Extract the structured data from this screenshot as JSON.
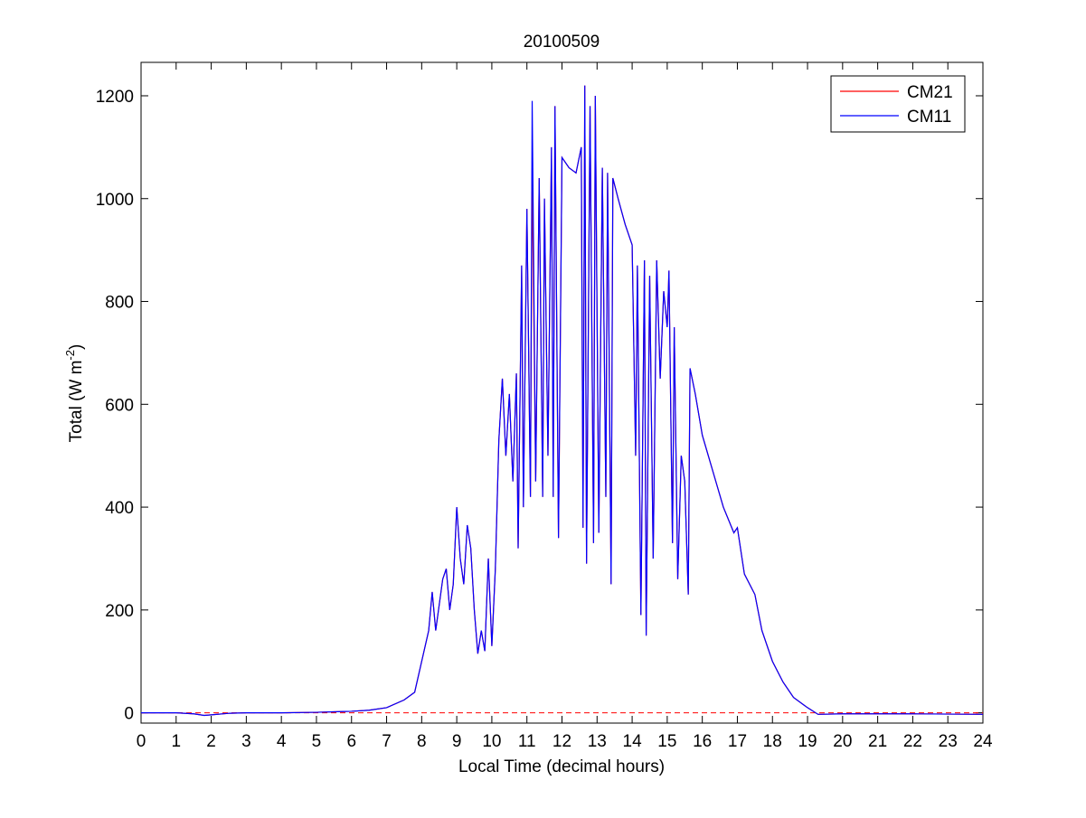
{
  "chart_data": {
    "type": "line",
    "title": "20100509",
    "xlabel": "Local Time (decimal hours)",
    "ylabel": [
      "Total (W m",
      "-2",
      ")"
    ],
    "x": [
      0,
      1,
      1.5,
      1.8,
      2,
      2.5,
      3,
      4,
      5,
      5.5,
      6,
      6.5,
      7,
      7.5,
      7.8,
      8,
      8.2,
      8.3,
      8.4,
      8.6,
      8.7,
      8.8,
      8.9,
      9.0,
      9.1,
      9.2,
      9.3,
      9.4,
      9.5,
      9.6,
      9.7,
      9.8,
      9.9,
      10.0,
      10.1,
      10.2,
      10.3,
      10.4,
      10.5,
      10.6,
      10.7,
      10.75,
      10.85,
      10.9,
      11.0,
      11.1,
      11.15,
      11.25,
      11.35,
      11.45,
      11.5,
      11.6,
      11.7,
      11.75,
      11.8,
      11.9,
      12.0,
      12.2,
      12.4,
      12.55,
      12.6,
      12.65,
      12.7,
      12.8,
      12.9,
      12.95,
      13.05,
      13.15,
      13.25,
      13.3,
      13.4,
      13.45,
      13.6,
      13.8,
      14.0,
      14.1,
      14.15,
      14.25,
      14.35,
      14.4,
      14.5,
      14.6,
      14.7,
      14.8,
      14.9,
      15.0,
      15.05,
      15.15,
      15.2,
      15.3,
      15.4,
      15.5,
      15.6,
      15.65,
      15.8,
      16.0,
      16.3,
      16.6,
      16.9,
      17.0,
      17.2,
      17.5,
      17.7,
      18.0,
      18.3,
      18.6,
      19.0,
      19.3,
      20,
      22,
      24
    ],
    "series": [
      {
        "name": "CM21",
        "color": "#ff0000",
        "values": [
          0,
          0,
          -2,
          -5,
          -4,
          -1,
          0,
          0,
          1,
          2,
          3,
          5,
          10,
          25,
          40,
          100,
          160,
          235,
          160,
          260,
          280,
          200,
          250,
          400,
          300,
          250,
          365,
          320,
          200,
          115,
          160,
          120,
          300,
          130,
          280,
          530,
          650,
          500,
          620,
          450,
          660,
          320,
          870,
          400,
          980,
          420,
          1060,
          450,
          1040,
          420,
          1000,
          500,
          1100,
          420,
          1180,
          340,
          1080,
          1060,
          1050,
          1100,
          360,
          1220,
          290,
          1180,
          330,
          1200,
          350,
          1060,
          420,
          1050,
          250,
          1040,
          1000,
          950,
          910,
          500,
          870,
          190,
          880,
          150,
          850,
          300,
          880,
          650,
          820,
          750,
          860,
          330,
          750,
          260,
          500,
          450,
          230,
          670,
          620,
          540,
          470,
          400,
          350,
          360,
          270,
          230,
          160,
          100,
          60,
          30,
          10,
          -3,
          -2,
          -2,
          -3
        ]
      },
      {
        "name": "CM11",
        "color": "#0000ff",
        "values": [
          0,
          0,
          -2,
          -5,
          -4,
          -1,
          0,
          0,
          1,
          2,
          3,
          5,
          10,
          25,
          40,
          100,
          160,
          235,
          160,
          260,
          280,
          200,
          250,
          400,
          300,
          250,
          365,
          320,
          200,
          115,
          160,
          120,
          300,
          130,
          280,
          530,
          650,
          500,
          620,
          450,
          660,
          320,
          870,
          400,
          980,
          420,
          1190,
          450,
          1040,
          420,
          1000,
          500,
          1100,
          420,
          1180,
          340,
          1080,
          1060,
          1050,
          1100,
          360,
          1220,
          290,
          1180,
          330,
          1200,
          350,
          1060,
          420,
          1050,
          250,
          1040,
          1000,
          950,
          910,
          500,
          870,
          190,
          880,
          150,
          850,
          300,
          880,
          650,
          820,
          750,
          860,
          330,
          750,
          260,
          500,
          450,
          230,
          670,
          620,
          540,
          470,
          400,
          350,
          360,
          270,
          230,
          160,
          100,
          60,
          30,
          10,
          -3,
          -2,
          -2,
          -3
        ]
      }
    ],
    "reference_line": {
      "value": 0,
      "color": "#ff0000",
      "dashed": true
    },
    "xlim": [
      0,
      24
    ],
    "xticks": [
      0,
      1,
      2,
      3,
      4,
      5,
      6,
      7,
      8,
      9,
      10,
      11,
      12,
      13,
      14,
      15,
      16,
      17,
      18,
      19,
      20,
      21,
      22,
      23,
      24
    ],
    "ylim": [
      -20,
      1265
    ],
    "yticks": [
      0,
      200,
      400,
      600,
      800,
      1000,
      1200
    ],
    "legend": "northeast",
    "grid": false
  }
}
